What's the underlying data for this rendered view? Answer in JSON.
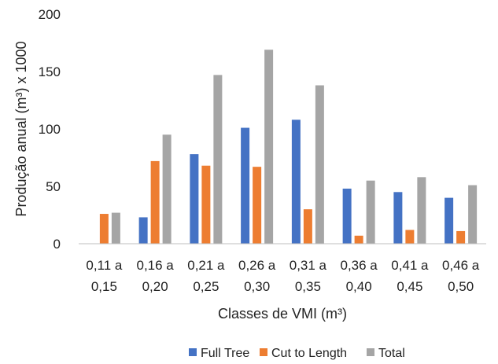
{
  "chart_data": {
    "type": "bar",
    "categories": [
      [
        "0,11 a",
        "0,15"
      ],
      [
        "0,16 a",
        "0,20"
      ],
      [
        "0,21 a",
        "0,25"
      ],
      [
        "0,26 a",
        "0,30"
      ],
      [
        "0,31 a",
        "0,35"
      ],
      [
        "0,36 a",
        "0,40"
      ],
      [
        "0,41 a",
        "0,45"
      ],
      [
        "0,46 a",
        "0,50"
      ]
    ],
    "series": [
      {
        "name": "Full Tree",
        "color": "#4472C4",
        "values": [
          0,
          23,
          78,
          101,
          108,
          48,
          45,
          40
        ]
      },
      {
        "name": "Cut to Length",
        "color": "#ED7D31",
        "values": [
          26,
          72,
          68,
          67,
          30,
          7,
          12,
          11
        ]
      },
      {
        "name": "Total",
        "color": "#A5A5A5",
        "values": [
          27,
          95,
          147,
          169,
          138,
          55,
          58,
          51
        ]
      }
    ],
    "title": "",
    "xlabel": "Classes de VMI (m³)",
    "ylabel": "Produção anual (m³) x 1000",
    "ylim": [
      0,
      200
    ],
    "yticks": [
      0,
      50,
      100,
      150,
      200
    ],
    "grid": false,
    "legend_position": "bottom"
  }
}
